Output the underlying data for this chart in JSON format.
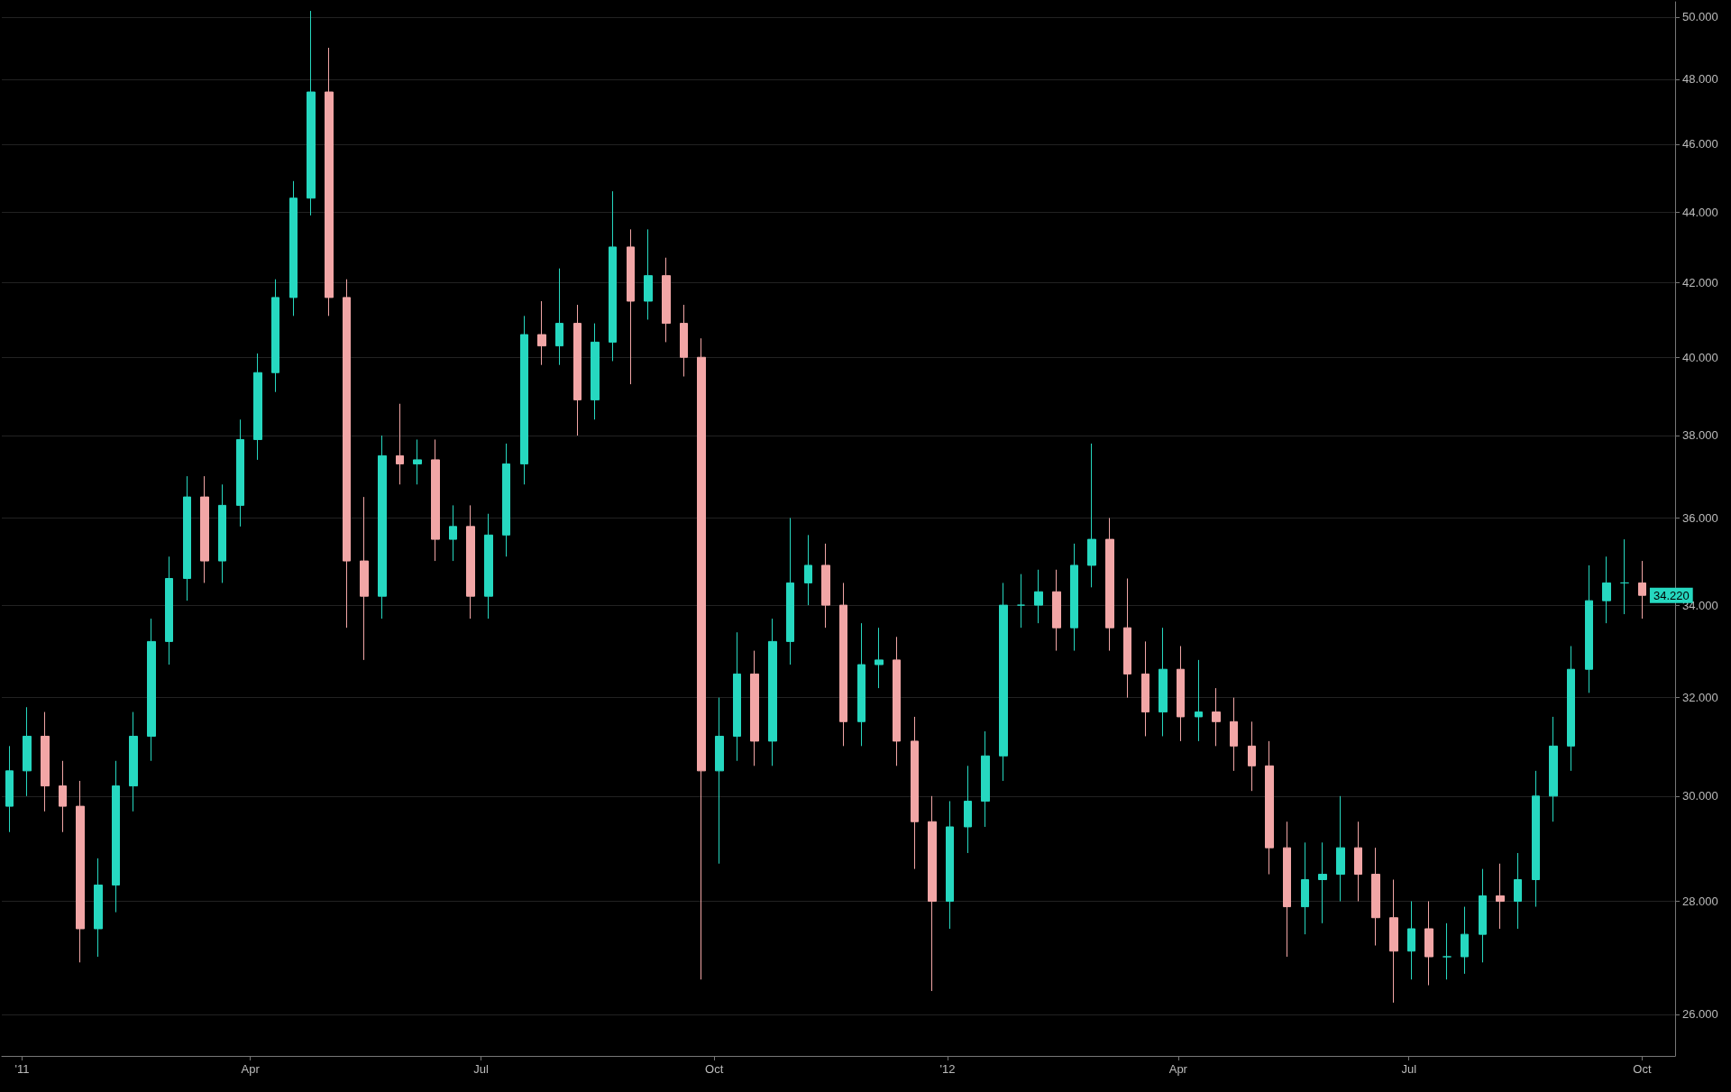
{
  "chart_data": {
    "type": "candlestick",
    "colors": [
      "#26d8c0",
      "#26d8c0",
      "#f2a6a6",
      "#f2a6a6",
      "#f2a6a6",
      "#26d8c0",
      "#26d8c0",
      "#26d8c0",
      "#26d8c0",
      "#26d8c0",
      "#26d8c0",
      "#f2a6a6",
      "#26d8c0",
      "#26d8c0",
      "#26d8c0",
      "#26d8c0",
      "#26d8c0",
      "#26d8c0",
      "#f2a6a6",
      "#f2a6a6",
      "#f2a6a6",
      "#26d8c0",
      "#f2a6a6",
      "#26d8c0",
      "#f2a6a6",
      "#26d8c0",
      "#f2a6a6",
      "#26d8c0",
      "#26d8c0",
      "#26d8c0",
      "#f2a6a6",
      "#26d8c0",
      "#f2a6a6",
      "#26d8c0",
      "#26d8c0",
      "#f2a6a6",
      "#26d8c0",
      "#f2a6a6",
      "#f2a6a6",
      "#f2a6a6",
      "#26d8c0",
      "#26d8c0",
      "#f2a6a6",
      "#26d8c0",
      "#26d8c0",
      "#26d8c0",
      "#f2a6a6",
      "#f2a6a6",
      "#26d8c0",
      "#26d8c0",
      "#f2a6a6",
      "#f2a6a6",
      "#f2a6a6",
      "#26d8c0",
      "#26d8c0",
      "#26d8c0",
      "#26d8c0",
      "#26d8c0",
      "#26d8c0",
      "#f2a6a6",
      "#26d8c0",
      "#26d8c0",
      "#f2a6a6",
      "#f2a6a6",
      "#f2a6a6",
      "#26d8c0",
      "#f2a6a6",
      "#26d8c0",
      "#f2a6a6",
      "#f2a6a6",
      "#f2a6a6",
      "#f2a6a6",
      "#f2a6a6",
      "#26d8c0",
      "#26d8c0",
      "#26d8c0",
      "#f2a6a6",
      "#f2a6a6",
      "#f2a6a6",
      "#26d8c0",
      "#f2a6a6",
      "#26d8c0",
      "#26d8c0",
      "#26d8c0",
      "#f2a6a6",
      "#26d8c0",
      "#26d8c0",
      "#26d8c0",
      "#26d8c0",
      "#26d8c0",
      "#26d8c0",
      "#26d8c0",
      "#f2a6a6"
    ],
    "grid": "y",
    "log": true,
    "x": [
      "2010-12-27",
      "2011-01-03",
      "2011-01-10",
      "2011-01-17",
      "2011-01-24",
      "2011-01-31",
      "2011-02-07",
      "2011-02-14",
      "2011-02-21",
      "2011-02-28",
      "2011-03-07",
      "2011-03-14",
      "2011-03-21",
      "2011-03-28",
      "2011-04-04",
      "2011-04-11",
      "2011-04-18",
      "2011-04-25",
      "2011-05-02",
      "2011-05-09",
      "2011-05-16",
      "2011-05-23",
      "2011-05-30",
      "2011-06-06",
      "2011-06-13",
      "2011-06-20",
      "2011-06-27",
      "2011-07-04",
      "2011-07-11",
      "2011-07-18",
      "2011-07-25",
      "2011-08-01",
      "2011-08-08",
      "2011-08-15",
      "2011-08-22",
      "2011-08-29",
      "2011-09-05",
      "2011-09-12",
      "2011-09-19",
      "2011-09-26",
      "2011-10-03",
      "2011-10-10",
      "2011-10-17",
      "2011-10-24",
      "2011-10-31",
      "2011-11-07",
      "2011-11-14",
      "2011-11-21",
      "2011-11-28",
      "2011-12-05",
      "2011-12-12",
      "2011-12-19",
      "2011-12-26",
      "2012-01-02",
      "2012-01-09",
      "2012-01-16",
      "2012-01-23",
      "2012-01-30",
      "2012-02-06",
      "2012-02-13",
      "2012-02-20",
      "2012-02-27",
      "2012-03-05",
      "2012-03-12",
      "2012-03-19",
      "2012-03-26",
      "2012-04-02",
      "2012-04-09",
      "2012-04-16",
      "2012-04-23",
      "2012-04-30",
      "2012-05-07",
      "2012-05-14",
      "2012-05-21",
      "2012-05-28",
      "2012-06-04",
      "2012-06-11",
      "2012-06-18",
      "2012-06-25",
      "2012-07-02",
      "2012-07-09",
      "2012-07-16",
      "2012-07-23",
      "2012-07-30",
      "2012-08-06",
      "2012-08-13",
      "2012-08-20",
      "2012-08-27",
      "2012-09-03",
      "2012-09-10",
      "2012-09-17",
      "2012-09-24",
      "2012-10-01"
    ],
    "ohlc": [
      [
        29.8,
        31,
        29.3,
        30.5
      ],
      [
        30.5,
        31.8,
        30,
        31.2
      ],
      [
        31.2,
        31.7,
        29.7,
        30.2
      ],
      [
        30.2,
        30.7,
        29.3,
        29.8
      ],
      [
        29.8,
        30.3,
        26.9,
        27.5
      ],
      [
        27.5,
        28.8,
        27,
        28.3
      ],
      [
        28.3,
        30.7,
        27.8,
        30.2
      ],
      [
        30.2,
        31.7,
        29.7,
        31.2
      ],
      [
        31.2,
        33.7,
        30.7,
        33.2
      ],
      [
        33.2,
        35.1,
        32.7,
        34.6
      ],
      [
        34.6,
        37,
        34.1,
        36.5
      ],
      [
        36.5,
        37,
        34.5,
        35
      ],
      [
        35,
        36.8,
        34.5,
        36.3
      ],
      [
        36.3,
        38.4,
        35.8,
        37.9
      ],
      [
        37.9,
        40.1,
        37.4,
        39.6
      ],
      [
        39.6,
        42.1,
        39.1,
        41.6
      ],
      [
        41.6,
        44.9,
        41.1,
        44.4
      ],
      [
        44.4,
        50.2,
        43.9,
        47.6
      ],
      [
        47.6,
        49,
        41.1,
        41.6
      ],
      [
        41.6,
        42.1,
        33.5,
        35
      ],
      [
        35,
        36.5,
        32.8,
        34.2
      ],
      [
        34.2,
        38,
        33.7,
        37.5
      ],
      [
        37.5,
        38.8,
        36.8,
        37.3
      ],
      [
        37.3,
        37.9,
        36.8,
        37.4
      ],
      [
        37.4,
        37.9,
        35,
        35.5
      ],
      [
        35.5,
        36.3,
        35,
        35.8
      ],
      [
        35.8,
        36.3,
        33.7,
        34.2
      ],
      [
        34.2,
        36.1,
        33.7,
        35.6
      ],
      [
        35.6,
        37.8,
        35.1,
        37.3
      ],
      [
        37.3,
        41.1,
        36.8,
        40.6
      ],
      [
        40.6,
        41.5,
        39.8,
        40.3
      ],
      [
        40.3,
        42.4,
        39.8,
        40.9
      ],
      [
        40.9,
        41.4,
        38,
        38.9
      ],
      [
        38.9,
        40.9,
        38.4,
        40.4
      ],
      [
        40.4,
        44.6,
        39.9,
        43
      ],
      [
        43,
        43.5,
        39.3,
        41.5
      ],
      [
        41.5,
        43.5,
        41,
        42.2
      ],
      [
        42.2,
        42.7,
        40.4,
        40.9
      ],
      [
        40.9,
        41.4,
        39.5,
        40
      ],
      [
        40,
        40.5,
        26.6,
        30.5
      ],
      [
        30.5,
        32,
        28.7,
        31.2
      ],
      [
        31.2,
        33.4,
        30.7,
        32.5
      ],
      [
        32.5,
        33,
        30.6,
        31.1
      ],
      [
        31.1,
        33.7,
        30.6,
        33.2
      ],
      [
        33.2,
        36,
        32.7,
        34.5
      ],
      [
        34.5,
        35.6,
        34,
        34.9
      ],
      [
        34.9,
        35.4,
        33.5,
        34
      ],
      [
        34,
        34.5,
        31,
        31.5
      ],
      [
        31.5,
        33.6,
        31,
        32.7
      ],
      [
        32.7,
        33.5,
        32.2,
        32.8
      ],
      [
        32.8,
        33.3,
        30.6,
        31.1
      ],
      [
        31.1,
        31.6,
        28.6,
        29.5
      ],
      [
        29.5,
        30,
        26.4,
        28
      ],
      [
        28,
        29.9,
        27.5,
        29.4
      ],
      [
        29.4,
        30.6,
        28.9,
        29.9
      ],
      [
        29.9,
        31.3,
        29.4,
        30.8
      ],
      [
        30.8,
        34.5,
        30.3,
        34
      ],
      [
        34,
        34.7,
        33.5,
        34
      ],
      [
        34,
        34.8,
        33.6,
        34.3
      ],
      [
        34.3,
        34.8,
        33,
        33.5
      ],
      [
        33.5,
        35.4,
        33,
        34.9
      ],
      [
        34.9,
        37.8,
        34.4,
        35.5
      ],
      [
        35.5,
        36,
        33,
        33.5
      ],
      [
        33.5,
        34.6,
        32,
        32.5
      ],
      [
        32.5,
        33.2,
        31.2,
        31.7
      ],
      [
        31.7,
        33.5,
        31.2,
        32.6
      ],
      [
        32.6,
        33.1,
        31.1,
        31.6
      ],
      [
        31.6,
        32.8,
        31.1,
        31.7
      ],
      [
        31.7,
        32.2,
        31,
        31.5
      ],
      [
        31.5,
        32,
        30.5,
        31
      ],
      [
        31,
        31.5,
        30.1,
        30.6
      ],
      [
        30.6,
        31.1,
        28.5,
        29
      ],
      [
        29,
        29.5,
        27,
        27.9
      ],
      [
        27.9,
        29.1,
        27.4,
        28.4
      ],
      [
        28.4,
        29.1,
        27.6,
        28.5
      ],
      [
        28.5,
        30,
        28,
        29
      ],
      [
        29,
        29.5,
        28,
        28.5
      ],
      [
        28.5,
        29,
        27.2,
        27.7
      ],
      [
        27.7,
        28.4,
        26.2,
        27.1
      ],
      [
        27.1,
        28,
        26.6,
        27.5
      ],
      [
        27.5,
        28,
        26.5,
        27
      ],
      [
        27,
        27.6,
        26.6,
        27
      ],
      [
        27,
        27.9,
        26.7,
        27.4
      ],
      [
        27.4,
        28.6,
        26.9,
        28.1
      ],
      [
        28.1,
        28.7,
        27.5,
        28
      ],
      [
        28,
        28.9,
        27.5,
        28.4
      ],
      [
        28.4,
        30.5,
        27.9,
        30
      ],
      [
        30,
        31.6,
        29.5,
        31
      ],
      [
        31,
        33.1,
        30.5,
        32.6
      ],
      [
        32.6,
        34.9,
        32.1,
        34.1
      ],
      [
        34.1,
        35.1,
        33.6,
        34.5
      ],
      [
        34.5,
        35.5,
        33.8,
        34.5
      ],
      [
        34.5,
        35,
        33.7,
        34.22
      ]
    ],
    "xlim": [
      "2010-12-24",
      "2012-10-14"
    ],
    "xticks": [
      {
        "value": "2011-01-01",
        "label": "'11"
      },
      {
        "value": "2011-04-01",
        "label": "Apr"
      },
      {
        "value": "2011-07-01",
        "label": "Jul"
      },
      {
        "value": "2011-10-01",
        "label": "Oct"
      },
      {
        "value": "2012-01-01",
        "label": "'12"
      },
      {
        "value": "2012-04-01",
        "label": "Apr"
      },
      {
        "value": "2012-07-01",
        "label": "Jul"
      },
      {
        "value": "2012-10-01",
        "label": "Oct"
      }
    ],
    "ylim": [
      25.3,
      50.5
    ],
    "yticks": [
      {
        "value": 26,
        "label": "26.000"
      },
      {
        "value": 28,
        "label": "28.000"
      },
      {
        "value": 30,
        "label": "30.000"
      },
      {
        "value": 32,
        "label": "32.000"
      },
      {
        "value": 34,
        "label": "34.000"
      },
      {
        "value": 36,
        "label": "36.000"
      },
      {
        "value": 38,
        "label": "38.000"
      },
      {
        "value": 40,
        "label": "40.000"
      },
      {
        "value": 42,
        "label": "42.000"
      },
      {
        "value": 44,
        "label": "44.000"
      },
      {
        "value": 46,
        "label": "46.000"
      },
      {
        "value": 48,
        "label": "48.000"
      },
      {
        "value": 50,
        "label": "50.000"
      }
    ],
    "annotations": [
      {
        "text": "34.220",
        "x": "2012-10-01",
        "y": 34.22
      }
    ]
  }
}
